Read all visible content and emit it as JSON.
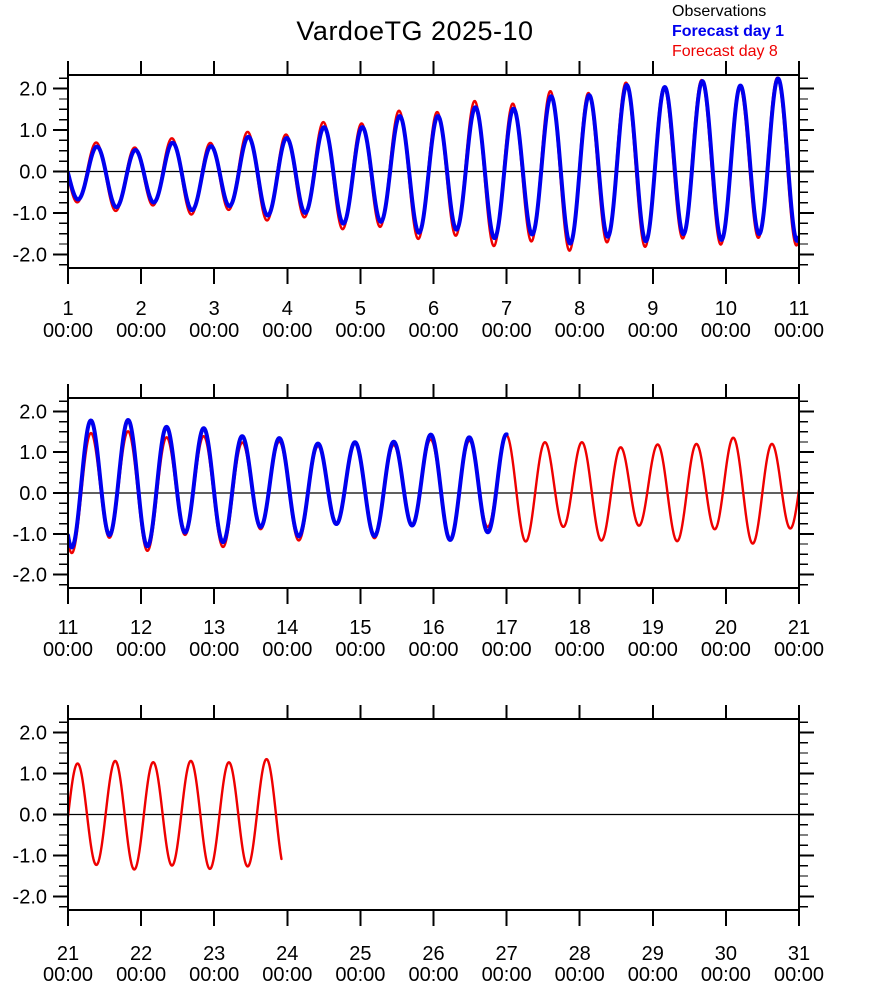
{
  "title": "VardoeTG 2025-10",
  "legend": {
    "items": [
      {
        "label": "Observations",
        "color": "#000000",
        "bold": false
      },
      {
        "label": "Forecast day 1",
        "color": "#0000ee",
        "bold": true
      },
      {
        "label": "Forecast day 8",
        "color": "#ee0000",
        "bold": false
      }
    ]
  },
  "chart_data": {
    "type": "line",
    "title": "VardoeTG 2025-10",
    "x_sublabel": "00:00",
    "ylim": [
      -2.33,
      2.33
    ],
    "yticks": [
      -2.0,
      -1.0,
      0.0,
      1.0,
      2.0
    ],
    "ytick_minor_step": 0.25,
    "grid": "zero-line-only",
    "legend_position": "top-right",
    "tide_period_days": 0.5175,
    "diurnal_period_days": 1.035,
    "panels": [
      {
        "xlim": [
          1,
          11
        ],
        "xticks": [
          1,
          2,
          3,
          4,
          5,
          6,
          7,
          8,
          9,
          10,
          11
        ],
        "series": [
          {
            "name": "Observations",
            "color": "#000000",
            "width": 2.0,
            "t_start": 1,
            "t_end": 11,
            "phase_day": 1.27,
            "amp": [
              [
                1,
                0.62
              ],
              [
                2,
                0.7
              ],
              [
                3,
                0.78
              ],
              [
                4,
                0.95
              ],
              [
                5,
                1.18
              ],
              [
                6,
                1.42
              ],
              [
                7,
                1.55
              ],
              [
                8,
                1.78
              ],
              [
                9,
                1.85
              ],
              [
                10,
                1.85
              ],
              [
                11,
                1.9
              ]
            ],
            "offset": [
              [
                1,
                -0.12
              ],
              [
                3,
                -0.1
              ],
              [
                5,
                -0.05
              ],
              [
                7,
                0.0
              ],
              [
                8,
                0.1
              ],
              [
                9,
                0.25
              ],
              [
                11,
                0.3
              ]
            ],
            "diurnal_amp": 0.1,
            "diurnal_phase_day": 1.0
          },
          {
            "name": "Forecast day 8",
            "color": "#ee0000",
            "width": 2.4,
            "t_start": 1,
            "t_end": 11,
            "phase_day": 1.26,
            "amp": [
              [
                1,
                0.7
              ],
              [
                2,
                0.78
              ],
              [
                3,
                0.88
              ],
              [
                4,
                1.06
              ],
              [
                5,
                1.3
              ],
              [
                6,
                1.55
              ],
              [
                7,
                1.72
              ],
              [
                8,
                1.9
              ],
              [
                9,
                1.92
              ],
              [
                10,
                1.9
              ],
              [
                11,
                1.95
              ]
            ],
            "offset": [
              [
                1,
                -0.12
              ],
              [
                3,
                -0.1
              ],
              [
                5,
                -0.06
              ],
              [
                7,
                -0.02
              ],
              [
                8,
                0.06
              ],
              [
                9,
                0.2
              ],
              [
                11,
                0.25
              ]
            ],
            "diurnal_amp": 0.12,
            "diurnal_phase_day": 1.0
          },
          {
            "name": "Forecast day 1",
            "color": "#0000ee",
            "width": 4.0,
            "t_start": 1,
            "t_end": 11,
            "phase_day": 1.27,
            "amp": [
              [
                1,
                0.62
              ],
              [
                2,
                0.7
              ],
              [
                3,
                0.78
              ],
              [
                4,
                0.95
              ],
              [
                5,
                1.18
              ],
              [
                6,
                1.42
              ],
              [
                7,
                1.55
              ],
              [
                8,
                1.78
              ],
              [
                9,
                1.85
              ],
              [
                10,
                1.85
              ],
              [
                11,
                1.9
              ]
            ],
            "offset": [
              [
                1,
                -0.12
              ],
              [
                3,
                -0.1
              ],
              [
                5,
                -0.05
              ],
              [
                7,
                0.0
              ],
              [
                8,
                0.1
              ],
              [
                9,
                0.25
              ],
              [
                11,
                0.3
              ]
            ],
            "diurnal_amp": 0.1,
            "diurnal_phase_day": 1.0
          }
        ]
      },
      {
        "xlim": [
          11,
          21
        ],
        "xticks": [
          11,
          12,
          13,
          14,
          15,
          16,
          17,
          18,
          19,
          20,
          21
        ],
        "series": [
          {
            "name": "Observations",
            "color": "#000000",
            "width": 2.0,
            "t_start": 11,
            "t_end": 17.0,
            "phase_day": 11.18,
            "amp": [
              [
                11,
                1.52
              ],
              [
                12,
                1.45
              ],
              [
                13,
                1.3
              ],
              [
                14,
                1.1
              ],
              [
                15,
                1.05
              ],
              [
                16,
                1.18
              ],
              [
                17,
                1.28
              ]
            ],
            "offset": [
              [
                11,
                0.33
              ],
              [
                12,
                0.28
              ],
              [
                13,
                0.22
              ],
              [
                14,
                0.18
              ],
              [
                15,
                0.15
              ],
              [
                16,
                0.22
              ],
              [
                17,
                0.12
              ]
            ],
            "diurnal_amp": 0.15,
            "diurnal_phase_day": 11.35
          },
          {
            "name": "Forecast day 8",
            "color": "#ee0000",
            "width": 2.4,
            "t_start": 11,
            "t_end": 21,
            "phase_day": 11.18,
            "amp": [
              [
                11,
                1.42
              ],
              [
                12,
                1.35
              ],
              [
                13,
                1.25
              ],
              [
                14,
                1.1
              ],
              [
                15,
                1.05
              ],
              [
                16,
                1.12
              ],
              [
                17,
                1.2
              ],
              [
                18,
                1.1
              ],
              [
                19,
                1.05
              ],
              [
                20,
                1.2
              ],
              [
                21,
                1.12
              ]
            ],
            "offset": [
              [
                11,
                0.12
              ],
              [
                13,
                0.08
              ],
              [
                14,
                0.1
              ],
              [
                16,
                0.15
              ],
              [
                17,
                0.18
              ],
              [
                18,
                0.1
              ],
              [
                19,
                0.08
              ],
              [
                20,
                0.12
              ],
              [
                21,
                0.08
              ]
            ],
            "diurnal_amp": 0.18,
            "diurnal_phase_day": 11.35
          },
          {
            "name": "Forecast day 1",
            "color": "#0000ee",
            "width": 4.0,
            "t_start": 11,
            "t_end": 17.0,
            "phase_day": 11.18,
            "amp": [
              [
                11,
                1.52
              ],
              [
                12,
                1.45
              ],
              [
                13,
                1.3
              ],
              [
                14,
                1.1
              ],
              [
                15,
                1.05
              ],
              [
                16,
                1.18
              ],
              [
                17,
                1.28
              ]
            ],
            "offset": [
              [
                11,
                0.33
              ],
              [
                12,
                0.28
              ],
              [
                13,
                0.22
              ],
              [
                14,
                0.18
              ],
              [
                15,
                0.15
              ],
              [
                16,
                0.22
              ],
              [
                17,
                0.12
              ]
            ],
            "diurnal_amp": 0.15,
            "diurnal_phase_day": 11.35
          }
        ]
      },
      {
        "xlim": [
          21,
          31
        ],
        "xticks": [
          21,
          22,
          23,
          24,
          25,
          26,
          27,
          28,
          29,
          30,
          31
        ],
        "series": [
          {
            "name": "Forecast day 8",
            "color": "#ee0000",
            "width": 2.4,
            "t_start": 21,
            "t_end": 23.92,
            "phase_day": 21.0,
            "amp": [
              [
                21,
                1.26
              ],
              [
                22,
                1.3
              ],
              [
                23,
                1.28
              ],
              [
                24,
                1.35
              ]
            ],
            "offset": [
              [
                21,
                0.0
              ],
              [
                24,
                0.0
              ]
            ],
            "diurnal_amp": 0.05,
            "diurnal_phase_day": 21.2
          }
        ]
      }
    ]
  }
}
